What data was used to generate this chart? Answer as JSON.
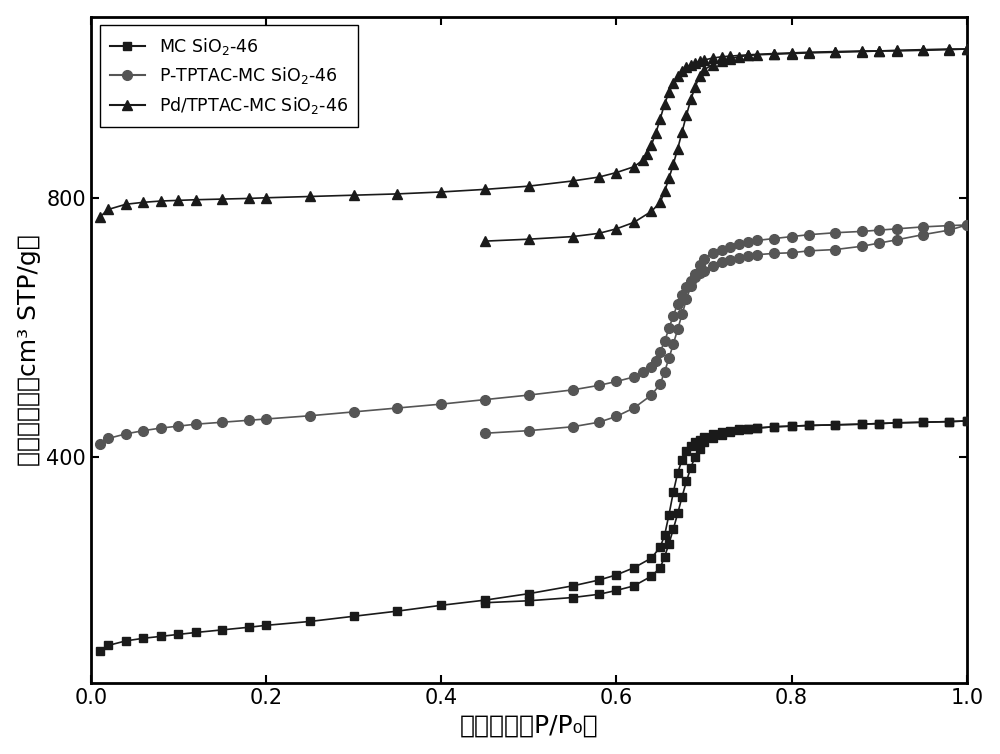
{
  "xlabel": "相对压力（P/P₀）",
  "ylabel": "体积吸附量（cm³ STP/g）",
  "xlim": [
    0.0,
    1.0
  ],
  "ylim": [
    50,
    1080
  ],
  "yticks": [
    400,
    800
  ],
  "xticks": [
    0.0,
    0.2,
    0.4,
    0.6,
    0.8,
    1.0
  ],
  "series1_color": "#1a1a1a",
  "series2_color": "#555555",
  "series3_color": "#1a1a1a",
  "background_color": "#ffffff",
  "series1_adsorption_x": [
    0.01,
    0.02,
    0.04,
    0.06,
    0.08,
    0.1,
    0.12,
    0.15,
    0.18,
    0.2,
    0.25,
    0.3,
    0.35,
    0.4,
    0.45,
    0.5,
    0.55,
    0.58,
    0.6,
    0.62,
    0.64,
    0.65,
    0.655,
    0.66,
    0.665,
    0.67,
    0.675,
    0.68,
    0.685,
    0.69,
    0.695,
    0.7,
    0.71,
    0.72,
    0.73,
    0.74,
    0.75,
    0.76,
    0.78,
    0.8,
    0.82,
    0.85,
    0.88,
    0.9,
    0.92,
    0.95,
    0.98,
    1.0
  ],
  "series1_adsorption_y": [
    100,
    108,
    115,
    119,
    122,
    125,
    128,
    132,
    136,
    139,
    145,
    153,
    161,
    170,
    178,
    188,
    200,
    209,
    217,
    228,
    243,
    260,
    278,
    310,
    345,
    375,
    395,
    408,
    416,
    422,
    426,
    430,
    435,
    438,
    440,
    442,
    443,
    444,
    446,
    447,
    448,
    449,
    450,
    451,
    452,
    453,
    454,
    455
  ],
  "series1_desorption_x": [
    1.0,
    0.98,
    0.95,
    0.92,
    0.9,
    0.88,
    0.85,
    0.82,
    0.8,
    0.78,
    0.76,
    0.75,
    0.74,
    0.73,
    0.72,
    0.71,
    0.7,
    0.695,
    0.69,
    0.685,
    0.68,
    0.675,
    0.67,
    0.665,
    0.66,
    0.655,
    0.65,
    0.64,
    0.62,
    0.6,
    0.58,
    0.55,
    0.5,
    0.45
  ],
  "series1_desorption_y": [
    455,
    454,
    453,
    452,
    451,
    450,
    449,
    448,
    447,
    446,
    444,
    443,
    441,
    438,
    434,
    429,
    422,
    412,
    400,
    383,
    362,
    338,
    312,
    288,
    265,
    245,
    228,
    215,
    200,
    193,
    187,
    182,
    177,
    174
  ],
  "series2_adsorption_x": [
    0.01,
    0.02,
    0.04,
    0.06,
    0.08,
    0.1,
    0.12,
    0.15,
    0.18,
    0.2,
    0.25,
    0.3,
    0.35,
    0.4,
    0.45,
    0.5,
    0.55,
    0.58,
    0.6,
    0.62,
    0.63,
    0.64,
    0.645,
    0.65,
    0.655,
    0.66,
    0.665,
    0.67,
    0.675,
    0.68,
    0.685,
    0.69,
    0.695,
    0.7,
    0.71,
    0.72,
    0.73,
    0.74,
    0.75,
    0.76,
    0.78,
    0.8,
    0.82,
    0.85,
    0.88,
    0.9,
    0.92,
    0.95,
    0.98,
    1.0
  ],
  "series2_adsorption_y": [
    420,
    428,
    435,
    440,
    444,
    447,
    450,
    453,
    456,
    458,
    463,
    469,
    475,
    481,
    488,
    495,
    503,
    510,
    516,
    523,
    530,
    538,
    548,
    562,
    578,
    598,
    618,
    636,
    650,
    662,
    671,
    678,
    683,
    687,
    694,
    700,
    704,
    707,
    710,
    712,
    714,
    715,
    718,
    720,
    725,
    730,
    735,
    743,
    750,
    758
  ],
  "series2_desorption_x": [
    1.0,
    0.98,
    0.95,
    0.92,
    0.9,
    0.88,
    0.85,
    0.82,
    0.8,
    0.78,
    0.76,
    0.75,
    0.74,
    0.73,
    0.72,
    0.71,
    0.7,
    0.695,
    0.69,
    0.685,
    0.68,
    0.675,
    0.67,
    0.665,
    0.66,
    0.655,
    0.65,
    0.64,
    0.62,
    0.6,
    0.58,
    0.55,
    0.5,
    0.45
  ],
  "series2_desorption_y": [
    758,
    757,
    755,
    752,
    750,
    748,
    746,
    743,
    740,
    737,
    734,
    731,
    728,
    724,
    720,
    714,
    706,
    696,
    682,
    664,
    643,
    620,
    597,
    574,
    552,
    531,
    512,
    495,
    475,
    462,
    453,
    446,
    440,
    436
  ],
  "series3_adsorption_x": [
    0.01,
    0.02,
    0.04,
    0.06,
    0.08,
    0.1,
    0.12,
    0.15,
    0.18,
    0.2,
    0.25,
    0.3,
    0.35,
    0.4,
    0.45,
    0.5,
    0.55,
    0.58,
    0.6,
    0.62,
    0.63,
    0.635,
    0.64,
    0.645,
    0.65,
    0.655,
    0.66,
    0.665,
    0.67,
    0.675,
    0.68,
    0.685,
    0.69,
    0.695,
    0.7,
    0.71,
    0.72,
    0.73,
    0.75,
    0.78,
    0.8,
    0.82,
    0.85,
    0.88,
    0.9,
    0.92,
    0.95,
    0.98,
    1.0
  ],
  "series3_adsorption_y": [
    770,
    782,
    790,
    793,
    795,
    796,
    797,
    798,
    799,
    800,
    802,
    804,
    806,
    809,
    813,
    818,
    826,
    832,
    839,
    848,
    858,
    868,
    882,
    900,
    922,
    945,
    963,
    977,
    988,
    996,
    1002,
    1006,
    1009,
    1011,
    1013,
    1016,
    1018,
    1019,
    1021,
    1023,
    1024,
    1025,
    1026,
    1027,
    1027,
    1028,
    1029,
    1030,
    1030
  ],
  "series3_desorption_x": [
    1.0,
    0.98,
    0.95,
    0.92,
    0.9,
    0.88,
    0.85,
    0.82,
    0.8,
    0.78,
    0.76,
    0.75,
    0.74,
    0.73,
    0.72,
    0.71,
    0.7,
    0.695,
    0.69,
    0.685,
    0.68,
    0.675,
    0.67,
    0.665,
    0.66,
    0.655,
    0.65,
    0.64,
    0.62,
    0.6,
    0.58,
    0.55,
    0.5,
    0.45
  ],
  "series3_desorption_y": [
    1030,
    1029,
    1028,
    1027,
    1027,
    1026,
    1025,
    1024,
    1023,
    1022,
    1021,
    1020,
    1018,
    1015,
    1011,
    1006,
    998,
    988,
    972,
    952,
    928,
    902,
    876,
    852,
    830,
    810,
    793,
    779,
    762,
    752,
    745,
    740,
    736,
    733
  ]
}
